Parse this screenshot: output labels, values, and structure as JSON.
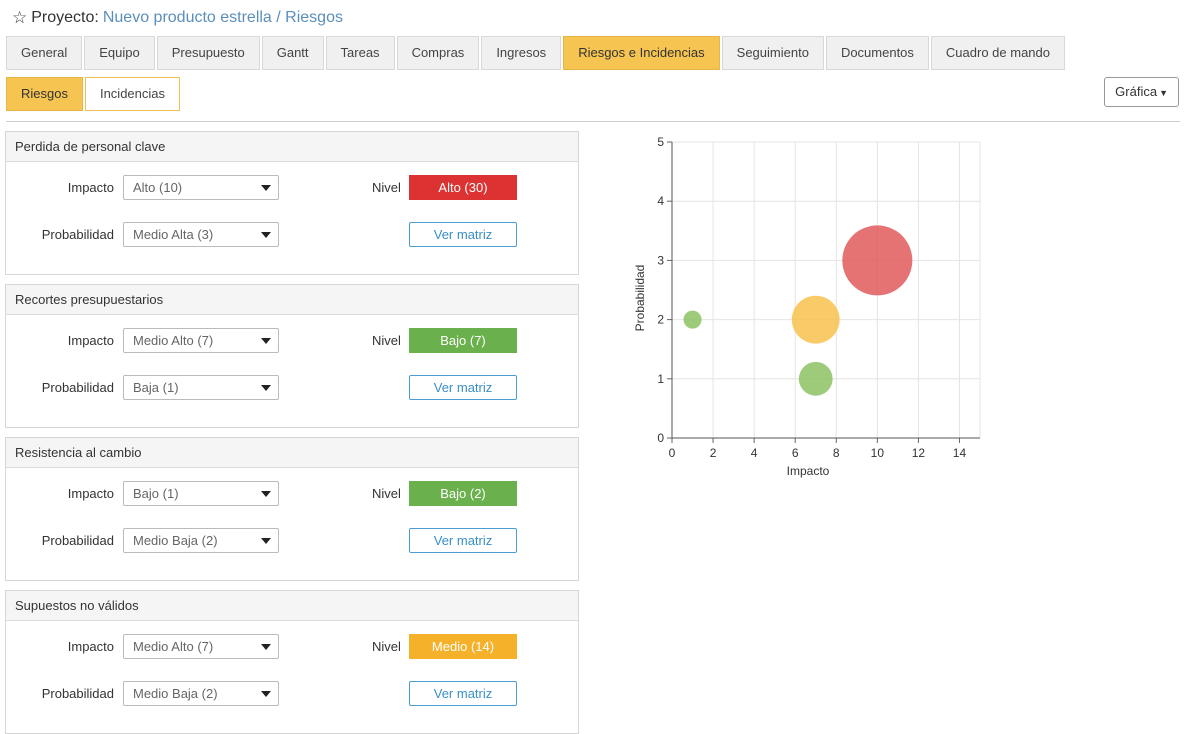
{
  "header": {
    "prefix": "Proyecto:",
    "path": "Nuevo producto estrella / Riesgos"
  },
  "tabs": [
    {
      "label": "General"
    },
    {
      "label": "Equipo"
    },
    {
      "label": "Presupuesto"
    },
    {
      "label": "Gantt"
    },
    {
      "label": "Tareas"
    },
    {
      "label": "Compras"
    },
    {
      "label": "Ingresos"
    },
    {
      "label": "Riesgos e Incidencias",
      "active": true
    },
    {
      "label": "Seguimiento"
    },
    {
      "label": "Documentos"
    },
    {
      "label": "Cuadro de mando"
    }
  ],
  "subtabs": [
    {
      "label": "Riesgos",
      "active": true
    },
    {
      "label": "Incidencias"
    }
  ],
  "view_button": "Gráfica",
  "labels": {
    "impacto": "Impacto",
    "probabilidad": "Probabilidad",
    "nivel": "Nivel",
    "ver_matriz": "Ver matriz"
  },
  "risks": [
    {
      "name": "Perdida de personal clave",
      "impacto": "Alto (10)",
      "probabilidad": "Medio Alta (3)",
      "nivel": "Alto (30)",
      "nivel_color": "#dc3232"
    },
    {
      "name": "Recortes presupuestarios",
      "impacto": "Medio Alto (7)",
      "probabilidad": "Baja (1)",
      "nivel": "Bajo (7)",
      "nivel_color": "#6ab04c"
    },
    {
      "name": "Resistencia al cambio",
      "impacto": "Bajo (1)",
      "probabilidad": "Medio Baja (2)",
      "nivel": "Bajo (2)",
      "nivel_color": "#6ab04c"
    },
    {
      "name": "Supuestos no válidos",
      "impacto": "Medio Alto (7)",
      "probabilidad": "Medio Baja (2)",
      "nivel": "Medio (14)",
      "nivel_color": "#f6b12a"
    }
  ],
  "chart_data": {
    "type": "scatter",
    "xlabel": "Impacto",
    "ylabel": "Probabilidad",
    "xlim": [
      0,
      15
    ],
    "ylim": [
      0,
      5
    ],
    "xticks": [
      0,
      2,
      4,
      6,
      8,
      10,
      12,
      14
    ],
    "yticks": [
      0,
      1,
      2,
      3,
      4,
      5
    ],
    "grid": true,
    "points": [
      {
        "x": 10,
        "y": 3,
        "size": 30,
        "color": "#e05a5a"
      },
      {
        "x": 7,
        "y": 1,
        "size": 7,
        "color": "#8cc263"
      },
      {
        "x": 1,
        "y": 2,
        "size": 2,
        "color": "#8cc263"
      },
      {
        "x": 7,
        "y": 2,
        "size": 14,
        "color": "#f8c24e"
      }
    ]
  }
}
